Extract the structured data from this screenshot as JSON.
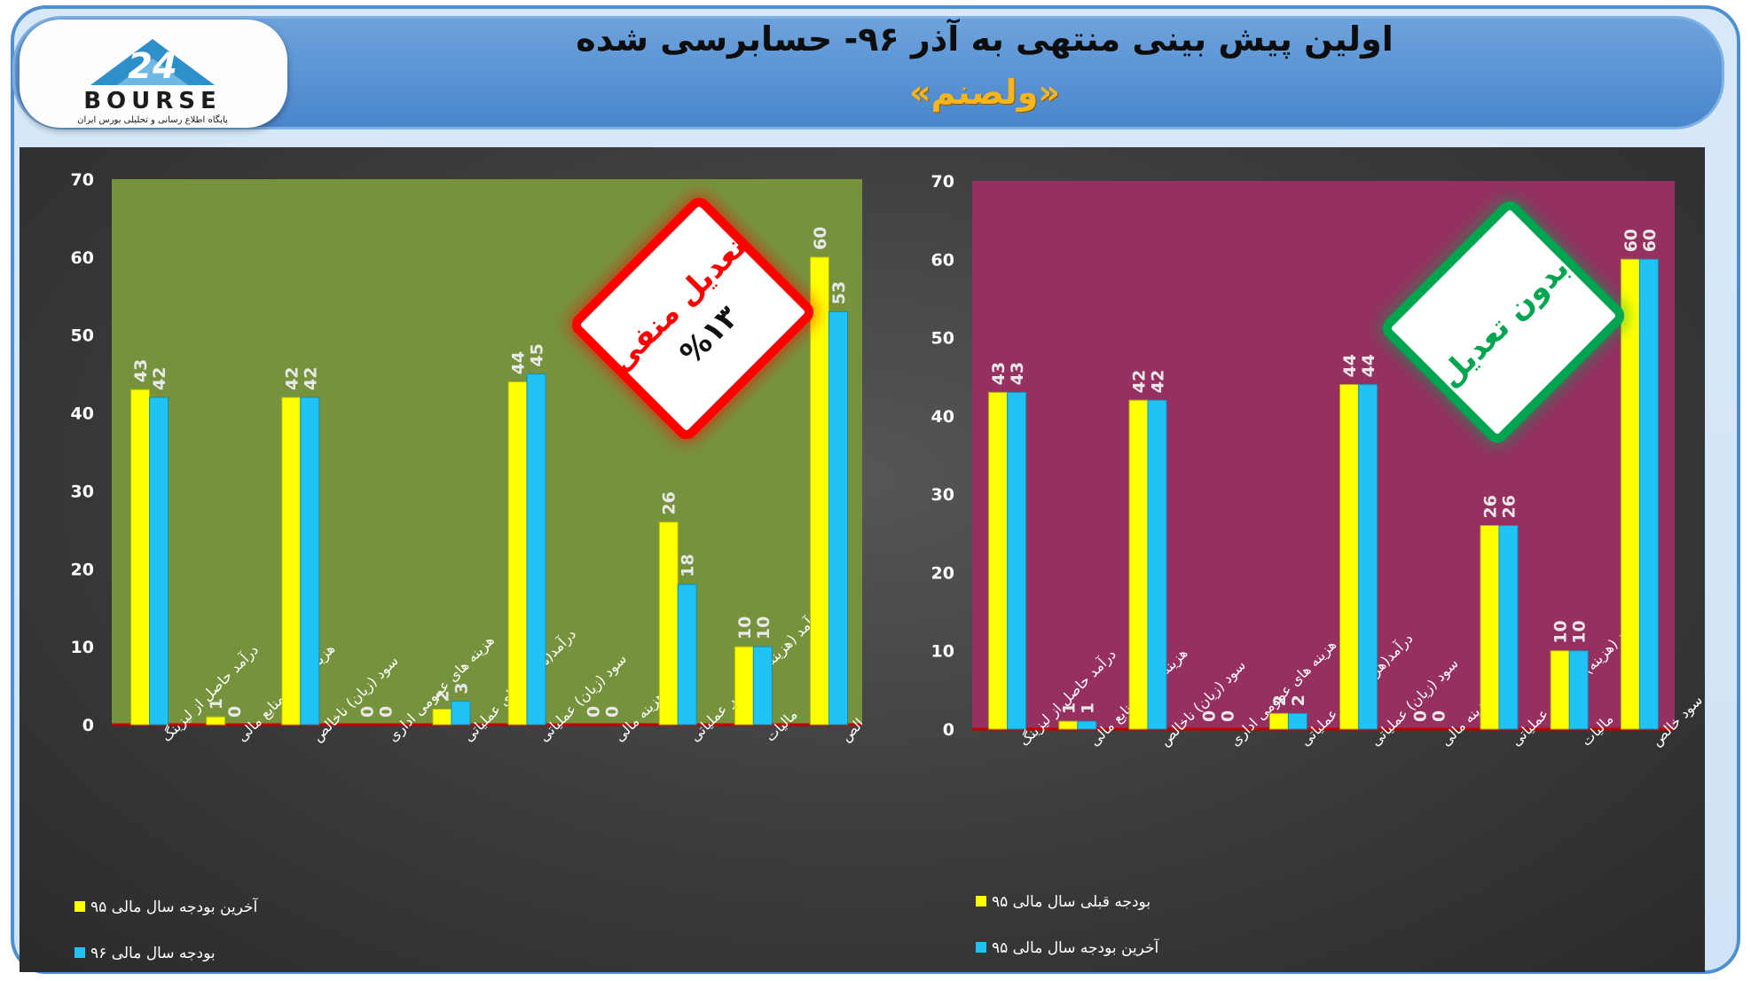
{
  "header": {
    "title": "اولین پیش بینی منتهی به آذر ۹۶- حسابرسی شده",
    "symbol": "«ولصنم»"
  },
  "logo": {
    "text": "BOURSE",
    "number": "24",
    "tagline": "پایگاه اطلاع رسانی و تحلیلی بورس ایران"
  },
  "colors": {
    "series1": "#ffff00",
    "series2": "#1fc3f4",
    "left_bg": "#76923c",
    "right_bg": "#953060",
    "badge_red": "#ff0000",
    "badge_green": "#00a550"
  },
  "chart_data": [
    {
      "type": "bar",
      "categories": [
        "درآمد حاصل از لیزینگ",
        "هزینه تامین منابع مالی",
        "سود (زیان) ناخالص",
        "هزینه های عمومی اداری",
        "درآمد(هزینه) های عملیاتی",
        "سود (زیان) عملیاتی",
        "هزینه مالی",
        "درآمد (هزینه) های غیر عملیاتی",
        "مالیات",
        "سود خالص"
      ],
      "series": [
        {
          "name": "آخرین بودجه سال مالی ۹۵",
          "values": [
            43,
            1,
            42,
            0,
            2,
            44,
            0,
            26,
            10,
            60
          ]
        },
        {
          "name": "بودجه سال مالی ۹۶",
          "values": [
            42,
            0,
            42,
            0,
            3,
            45,
            0,
            18,
            10,
            53
          ]
        }
      ],
      "ylim": [
        0,
        70
      ],
      "yticks": [
        "0",
        "10",
        "20",
        "30",
        "40",
        "50",
        "60",
        "70"
      ],
      "legend": "bottom-left",
      "badge": {
        "line1": "تعدیل منفی",
        "line2": "%۱۳"
      }
    },
    {
      "type": "bar",
      "categories": [
        "درآمد حاصل از لیزینگ",
        "هزینه تامین منابع مالی",
        "سود (زیان) ناخالص",
        "هزینه های عمومی اداری",
        "درآمد(هزینه) های عملیاتی",
        "سود (زیان) عملیاتی",
        "هزینه مالی",
        "درآمد (هزینه) های غیر عملیاتی",
        "مالیات",
        "سود خالص"
      ],
      "series": [
        {
          "name": "بودجه قبلی سال مالی ۹۵",
          "values": [
            43,
            1,
            42,
            0,
            2,
            44,
            0,
            26,
            10,
            60
          ]
        },
        {
          "name": "آخرین بودجه سال مالی ۹۵",
          "values": [
            43,
            1,
            42,
            0,
            2,
            44,
            0,
            26,
            10,
            60
          ]
        }
      ],
      "ylim": [
        0,
        70
      ],
      "yticks": [
        "0",
        "10",
        "20",
        "30",
        "40",
        "50",
        "60",
        "70"
      ],
      "legend": "bottom-left",
      "badge": {
        "line1": "بدون تعدیل",
        "line2": ""
      }
    }
  ]
}
